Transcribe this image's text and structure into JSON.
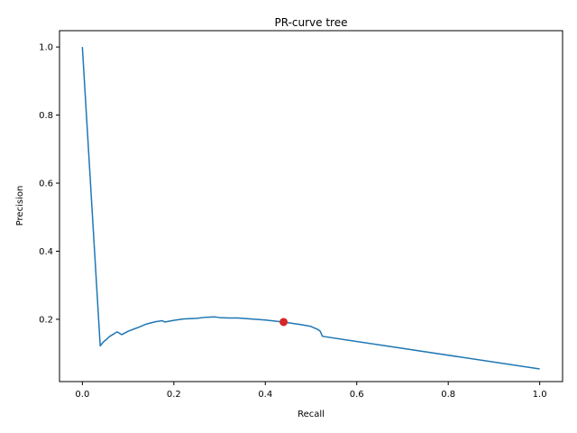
{
  "chart_data": {
    "type": "line",
    "title": "PR-curve tree",
    "xlabel": "Recall",
    "ylabel": "Precision",
    "xlim": [
      -0.05,
      1.05
    ],
    "ylim": [
      0.017,
      1.048
    ],
    "grid": false,
    "xticks": [
      {
        "value": 0.0,
        "label": "0.0"
      },
      {
        "value": 0.2,
        "label": "0.2"
      },
      {
        "value": 0.4,
        "label": "0.4"
      },
      {
        "value": 0.6,
        "label": "0.6"
      },
      {
        "value": 0.8,
        "label": "0.8"
      },
      {
        "value": 1.0,
        "label": "1.0"
      }
    ],
    "yticks": [
      {
        "value": 0.2,
        "label": "0.2"
      },
      {
        "value": 0.4,
        "label": "0.4"
      },
      {
        "value": 0.6,
        "label": "0.6"
      },
      {
        "value": 0.8,
        "label": "0.8"
      },
      {
        "value": 1.0,
        "label": "1.0"
      }
    ],
    "series": [
      {
        "color": "#1f77b4",
        "points": [
          [
            0.0,
            1.0
          ],
          [
            0.039,
            0.122
          ],
          [
            0.045,
            0.132
          ],
          [
            0.06,
            0.15
          ],
          [
            0.076,
            0.163
          ],
          [
            0.086,
            0.155
          ],
          [
            0.1,
            0.165
          ],
          [
            0.12,
            0.175
          ],
          [
            0.14,
            0.186
          ],
          [
            0.16,
            0.193
          ],
          [
            0.175,
            0.196
          ],
          [
            0.18,
            0.192
          ],
          [
            0.2,
            0.197
          ],
          [
            0.22,
            0.201
          ],
          [
            0.25,
            0.203
          ],
          [
            0.27,
            0.206
          ],
          [
            0.29,
            0.207
          ],
          [
            0.3,
            0.205
          ],
          [
            0.32,
            0.204
          ],
          [
            0.34,
            0.204
          ],
          [
            0.36,
            0.202
          ],
          [
            0.38,
            0.2
          ],
          [
            0.4,
            0.198
          ],
          [
            0.42,
            0.195
          ],
          [
            0.44,
            0.192
          ],
          [
            0.46,
            0.188
          ],
          [
            0.48,
            0.184
          ],
          [
            0.5,
            0.179
          ],
          [
            0.515,
            0.17
          ],
          [
            0.52,
            0.165
          ],
          [
            0.525,
            0.15
          ],
          [
            1.0,
            0.054
          ]
        ]
      }
    ],
    "highlight_point": {
      "x": 0.44,
      "y": 0.192,
      "color": "#d62728"
    }
  }
}
